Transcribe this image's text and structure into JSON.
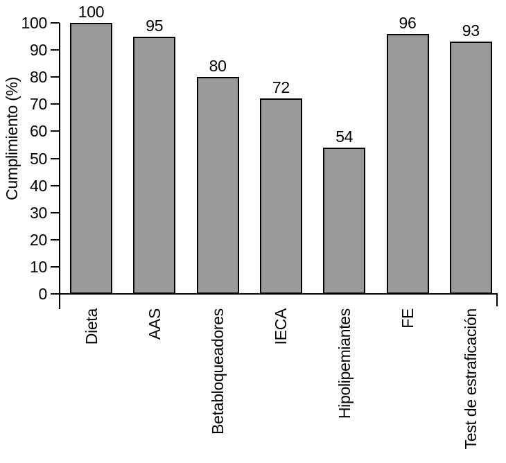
{
  "chart_data": {
    "type": "bar",
    "title": "",
    "xlabel": "",
    "ylabel": "Cumplimiento (%)",
    "categories": [
      "Dieta",
      "AAS",
      "Betabloqueadores",
      "IECA",
      "Hipolipemiantes",
      "FE",
      "Test de estraficación"
    ],
    "values": [
      100,
      95,
      80,
      72,
      54,
      96,
      93
    ],
    "bar_value_labels": [
      "100",
      "95",
      "80",
      "72",
      "54",
      "96",
      "93"
    ],
    "ylim": [
      0,
      100
    ],
    "yticks": [
      0,
      10,
      20,
      30,
      40,
      50,
      60,
      70,
      80,
      90,
      100
    ],
    "grid": false,
    "legend": false,
    "colors": {
      "bar_fill": "#9a9a9a",
      "bar_border": "#000000",
      "axis": "#000000",
      "text": "#000000",
      "background": "#ffffff"
    }
  }
}
